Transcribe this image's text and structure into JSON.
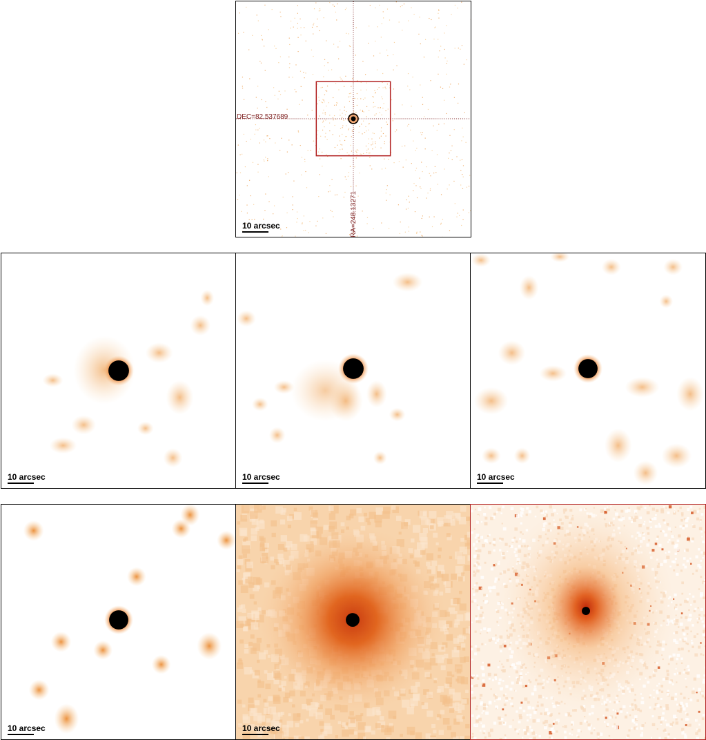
{
  "colors": {
    "frame": "#000000",
    "highlight_frame": "#b22222",
    "crosshair": "#7a1a1a",
    "core": "#000000",
    "glow": "#e8701a",
    "diffuse": "#f5b878"
  },
  "top_panel": {
    "scale_label": "10 arcsec",
    "dec_label": "DEC=82.537689",
    "ra_label": "RA=248.13271"
  },
  "panels": [
    {
      "scale_label": "10 arcsec"
    },
    {
      "scale_label": "10 arcsec"
    },
    {
      "scale_label": "10 arcsec"
    },
    {
      "scale_label": "10 arcsec"
    },
    {
      "scale_label": "10 arcsec"
    },
    {
      "scale_label": ""
    }
  ]
}
